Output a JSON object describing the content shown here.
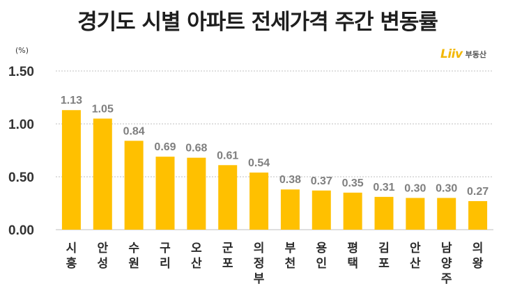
{
  "chart_data": {
    "type": "bar",
    "title": "경기도 시별 아파트 전세가격 주간 변동률",
    "unit": "(%)",
    "brand": {
      "mark": "Liiv",
      "text": "부동산"
    },
    "categories": [
      "시흥",
      "안성",
      "수원",
      "구리",
      "오산",
      "군포",
      "의정부",
      "부천",
      "용인",
      "평택",
      "김포",
      "안산",
      "남양주",
      "의왕"
    ],
    "values": [
      1.13,
      1.05,
      0.84,
      0.69,
      0.68,
      0.61,
      0.54,
      0.38,
      0.37,
      0.35,
      0.31,
      0.3,
      0.3,
      0.27
    ],
    "value_labels": [
      "1.13",
      "1.05",
      "0.84",
      "0.69",
      "0.68",
      "0.61",
      "0.54",
      "0.38",
      "0.37",
      "0.35",
      "0.31",
      "0.30",
      "0.30",
      "0.27"
    ],
    "yticks": [
      "0.00",
      "0.50",
      "1.00",
      "1.50"
    ],
    "ylim": [
      0,
      1.5
    ],
    "grid": true,
    "colors": {
      "bar": "#ffc000",
      "grid": "#bfbfbf",
      "value_label": "#7f7f7f"
    }
  }
}
